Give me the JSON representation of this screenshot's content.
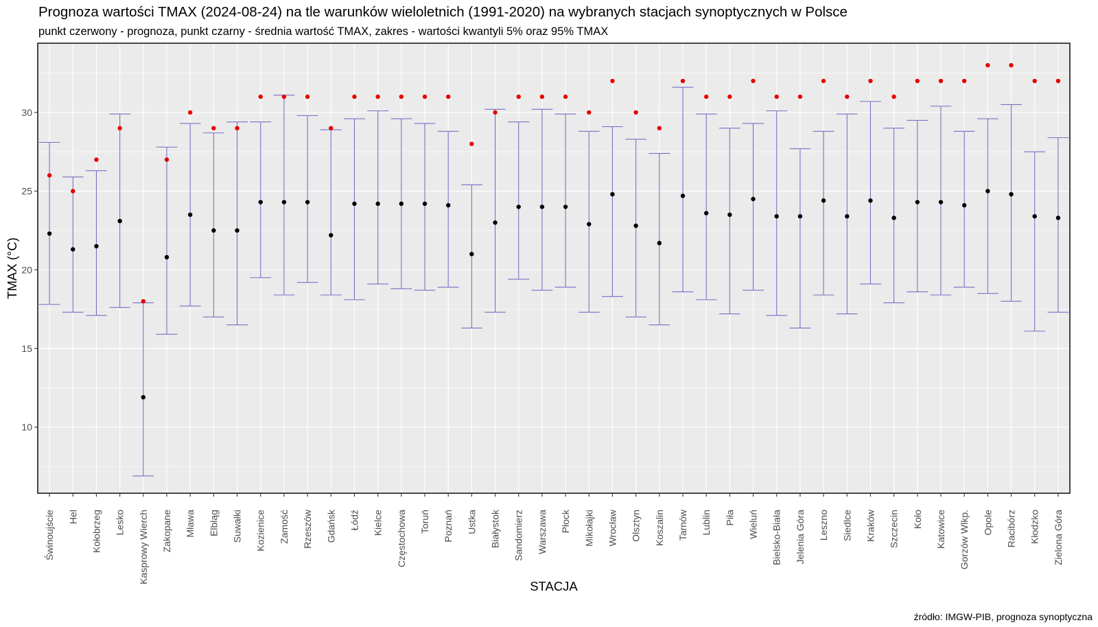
{
  "title": "Prognoza wartości TMAX (2024-08-24) na tle warunków wieloletnich (1991-2020) na wybranych stacjach synoptycznych w Polsce",
  "subtitle": "punkt czerwony - prognoza, punkt czarny - średnia wartość TMAX, zakres - wartości kwantyli 5% oraz 95% TMAX",
  "caption": "źródło: IMGW-PIB, prognoza synoptyczna",
  "chart_data": {
    "type": "scatter",
    "xlabel": "STACJA",
    "ylabel": "TMAX (°C)",
    "ylim": [
      5.8,
      34.4
    ],
    "yticks": [
      10,
      15,
      20,
      25,
      30
    ],
    "grid": true,
    "colors": {
      "forecast": "#e50000",
      "mean": "#000000",
      "range": "#7570c4",
      "panel": "#ebebeb",
      "grid": "#ffffff"
    },
    "categories": [
      "Świnoujście",
      "Hel",
      "Kołobrzeg",
      "Lesko",
      "Kasprowy Wierch",
      "Zakopane",
      "Mława",
      "Elbląg",
      "Suwałki",
      "Kozienice",
      "Zamość",
      "Rzeszów",
      "Gdańsk",
      "Łódź",
      "Kielce",
      "Częstochowa",
      "Toruń",
      "Poznań",
      "Ustka",
      "Białystok",
      "Sandomierz",
      "Warszawa",
      "Płock",
      "Mikołajki",
      "Wrocław",
      "Olsztyn",
      "Koszalin",
      "Tarnów",
      "Lublin",
      "Piła",
      "Wieluń",
      "Bielsko-Biała",
      "Jelenia Góra",
      "Leszno",
      "Siedlce",
      "Kraków",
      "Szczecin",
      "Koło",
      "Katowice",
      "Gorzów Wlkp.",
      "Opole",
      "Racibórz",
      "Kłodzko",
      "Zielona Góra"
    ],
    "series": [
      {
        "name": "prognoza",
        "values": [
          26,
          25,
          27,
          29,
          18,
          27,
          30,
          29,
          29,
          31,
          31,
          31,
          29,
          31,
          31,
          31,
          31,
          31,
          28,
          30,
          31,
          31,
          31,
          30,
          32,
          30,
          29,
          32,
          31,
          31,
          32,
          31,
          31,
          32,
          31,
          32,
          31,
          32,
          32,
          32,
          33,
          33,
          32,
          32
        ]
      },
      {
        "name": "średnia TMAX",
        "values": [
          22.3,
          21.3,
          21.5,
          23.1,
          11.9,
          20.8,
          23.5,
          22.5,
          22.5,
          24.3,
          24.3,
          24.3,
          22.2,
          24.2,
          24.2,
          24.2,
          24.2,
          24.1,
          21.0,
          23.0,
          24.0,
          24.0,
          24.0,
          22.9,
          24.8,
          22.8,
          21.7,
          24.7,
          23.6,
          23.5,
          24.5,
          23.4,
          23.4,
          24.4,
          23.4,
          24.4,
          23.3,
          24.3,
          24.3,
          24.1,
          25.0,
          24.8,
          23.4,
          23.3
        ]
      },
      {
        "name": "kwantyl 5%",
        "values": [
          17.8,
          17.3,
          17.1,
          17.6,
          6.9,
          15.9,
          17.7,
          17.0,
          16.5,
          19.5,
          18.4,
          19.2,
          18.4,
          18.1,
          19.1,
          18.8,
          18.7,
          18.9,
          16.3,
          17.3,
          19.4,
          18.7,
          18.9,
          17.3,
          18.3,
          17.0,
          16.5,
          18.6,
          18.1,
          17.2,
          18.7,
          17.1,
          16.3,
          18.4,
          17.2,
          19.1,
          17.9,
          18.6,
          18.4,
          18.9,
          18.5,
          18.0,
          16.1,
          17.3
        ]
      },
      {
        "name": "kwantyl 95%",
        "values": [
          28.1,
          25.9,
          26.3,
          29.9,
          17.9,
          27.8,
          29.3,
          28.7,
          29.4,
          29.4,
          31.1,
          29.8,
          28.9,
          29.6,
          30.1,
          29.6,
          29.3,
          28.8,
          25.4,
          30.2,
          29.4,
          30.2,
          29.9,
          28.8,
          29.1,
          28.3,
          27.4,
          31.6,
          29.9,
          29.0,
          29.3,
          30.1,
          27.7,
          28.8,
          29.9,
          30.7,
          29.0,
          29.5,
          30.4,
          28.8,
          29.6,
          30.5,
          27.5,
          28.4
        ]
      }
    ]
  }
}
